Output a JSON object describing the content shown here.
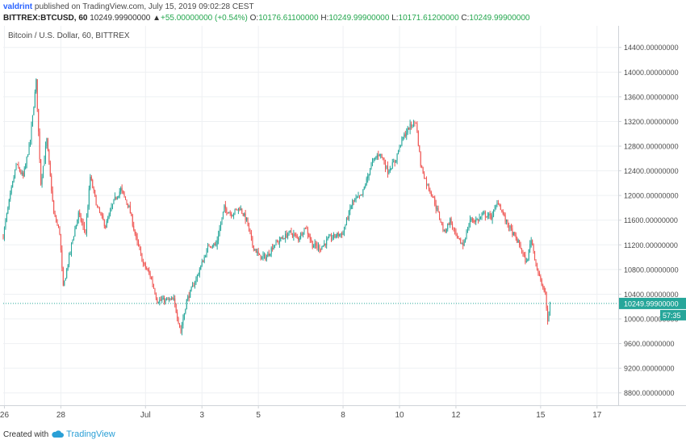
{
  "header": {
    "author": "valdrint",
    "published_text": "published on TradingView.com, July 15, 2019 09:02:28 CEST",
    "symbol": "BITTREX:BTCUSD, 60",
    "last_price": "10249.99900000",
    "change": "+55.00000000 (+0.54%)",
    "o_label": "O:",
    "o_value": "10176.61100000",
    "h_label": "H:",
    "h_value": "10249.99900000",
    "l_label": "L:",
    "l_value": "10171.61200000",
    "c_label": "C:",
    "c_value": "10249.99900000"
  },
  "footer": {
    "created_with": "Created with",
    "brand": "TradingView"
  },
  "colors": {
    "up": "#26a69a",
    "down": "#ef5350",
    "grid": "#eef0f3",
    "price_tag": "#26a69a",
    "header_up": "#25a74f",
    "author": "#2962ff"
  },
  "chart_data": {
    "type": "candlestick",
    "title": "Bitcoin / U.S. Dollar, 60, BITTREX",
    "ylim": [
      8600,
      14750
    ],
    "grid": true,
    "current_price": 10249.999,
    "current_price_label": "10249.99900000",
    "countdown": "57:35",
    "y_ticks": [
      "14400.00000000",
      "14000.00000000",
      "13600.00000000",
      "13200.00000000",
      "12800.00000000",
      "12400.00000000",
      "12000.00000000",
      "11600.00000000",
      "11200.00000000",
      "10800.00000000",
      "10400.00000000",
      "10000.00000000",
      "9600.00000000",
      "9200.00000000",
      "8800.00000000"
    ],
    "y_tick_values": [
      14400,
      14000,
      13600,
      13200,
      12800,
      12400,
      12000,
      11600,
      11200,
      10800,
      10400,
      10000,
      9600,
      9200,
      8800
    ],
    "x_range": [
      "2019-06-25T23:00",
      "2019-07-17T18:00"
    ],
    "x_ticks": [
      {
        "label": "26",
        "t": "2019-06-26T00:00"
      },
      {
        "label": "28",
        "t": "2019-06-28T00:00"
      },
      {
        "label": "Jul",
        "t": "2019-07-01T00:00"
      },
      {
        "label": "3",
        "t": "2019-07-03T00:00"
      },
      {
        "label": "5",
        "t": "2019-07-05T00:00"
      },
      {
        "label": "8",
        "t": "2019-07-08T00:00"
      },
      {
        "label": "10",
        "t": "2019-07-10T00:00"
      },
      {
        "label": "12",
        "t": "2019-07-12T00:00"
      },
      {
        "label": "15",
        "t": "2019-07-15T00:00"
      },
      {
        "label": "17",
        "t": "2019-07-17T00:00"
      }
    ],
    "series_start": "2019-06-25T23:00",
    "series_interval": "1h",
    "close_path": [
      {
        "t": "2019-06-25T23:00",
        "v": 11350
      },
      {
        "t": "2019-06-26T04:00",
        "v": 11900
      },
      {
        "t": "2019-06-26T10:00",
        "v": 12500
      },
      {
        "t": "2019-06-26T16:00",
        "v": 12300
      },
      {
        "t": "2019-06-26T22:00",
        "v": 12900
      },
      {
        "t": "2019-06-27T03:00",
        "v": 13850
      },
      {
        "t": "2019-06-27T07:00",
        "v": 12200
      },
      {
        "t": "2019-06-27T12:00",
        "v": 12900
      },
      {
        "t": "2019-06-27T18:00",
        "v": 11700
      },
      {
        "t": "2019-06-27T23:00",
        "v": 11400
      },
      {
        "t": "2019-06-28T02:00",
        "v": 10500
      },
      {
        "t": "2019-06-28T09:00",
        "v": 11200
      },
      {
        "t": "2019-06-28T15:00",
        "v": 11700
      },
      {
        "t": "2019-06-28T21:00",
        "v": 11400
      },
      {
        "t": "2019-06-29T01:00",
        "v": 12300
      },
      {
        "t": "2019-06-29T07:00",
        "v": 11800
      },
      {
        "t": "2019-06-29T14:00",
        "v": 11500
      },
      {
        "t": "2019-06-29T21:00",
        "v": 11900
      },
      {
        "t": "2019-06-30T03:00",
        "v": 12100
      },
      {
        "t": "2019-06-30T10:00",
        "v": 11800
      },
      {
        "t": "2019-06-30T16:00",
        "v": 11300
      },
      {
        "t": "2019-06-30T22:00",
        "v": 10900
      },
      {
        "t": "2019-07-01T04:00",
        "v": 10700
      },
      {
        "t": "2019-07-01T10:00",
        "v": 10300
      },
      {
        "t": "2019-07-01T17:00",
        "v": 10300
      },
      {
        "t": "2019-07-02T00:00",
        "v": 10300
      },
      {
        "t": "2019-07-02T06:00",
        "v": 9800
      },
      {
        "t": "2019-07-02T11:00",
        "v": 10300
      },
      {
        "t": "2019-07-02T18:00",
        "v": 10600
      },
      {
        "t": "2019-07-03T00:00",
        "v": 10900
      },
      {
        "t": "2019-07-03T06:00",
        "v": 11200
      },
      {
        "t": "2019-07-03T12:00",
        "v": 11200
      },
      {
        "t": "2019-07-03T19:00",
        "v": 11800
      },
      {
        "t": "2019-07-04T01:00",
        "v": 11700
      },
      {
        "t": "2019-07-04T08:00",
        "v": 11800
      },
      {
        "t": "2019-07-04T14:00",
        "v": 11600
      },
      {
        "t": "2019-07-04T19:00",
        "v": 11200
      },
      {
        "t": "2019-07-05T01:00",
        "v": 11000
      },
      {
        "t": "2019-07-05T07:00",
        "v": 11000
      },
      {
        "t": "2019-07-05T13:00",
        "v": 11200
      },
      {
        "t": "2019-07-05T20:00",
        "v": 11300
      },
      {
        "t": "2019-07-06T03:00",
        "v": 11400
      },
      {
        "t": "2019-07-06T10:00",
        "v": 11300
      },
      {
        "t": "2019-07-06T16:00",
        "v": 11500
      },
      {
        "t": "2019-07-06T22:00",
        "v": 11200
      },
      {
        "t": "2019-07-07T05:00",
        "v": 11150
      },
      {
        "t": "2019-07-07T12:00",
        "v": 11300
      },
      {
        "t": "2019-07-07T18:00",
        "v": 11350
      },
      {
        "t": "2019-07-08T00:00",
        "v": 11400
      },
      {
        "t": "2019-07-08T08:00",
        "v": 11900
      },
      {
        "t": "2019-07-08T16:00",
        "v": 12000
      },
      {
        "t": "2019-07-09T00:00",
        "v": 12500
      },
      {
        "t": "2019-07-09T07:00",
        "v": 12700
      },
      {
        "t": "2019-07-09T14:00",
        "v": 12400
      },
      {
        "t": "2019-07-09T20:00",
        "v": 12550
      },
      {
        "t": "2019-07-10T02:00",
        "v": 12900
      },
      {
        "t": "2019-07-10T08:00",
        "v": 13100
      },
      {
        "t": "2019-07-10T14:00",
        "v": 13200
      },
      {
        "t": "2019-07-10T18:00",
        "v": 12500
      },
      {
        "t": "2019-07-10T23:00",
        "v": 12200
      },
      {
        "t": "2019-07-11T04:00",
        "v": 12000
      },
      {
        "t": "2019-07-11T09:00",
        "v": 11700
      },
      {
        "t": "2019-07-11T14:00",
        "v": 11400
      },
      {
        "t": "2019-07-11T19:00",
        "v": 11600
      },
      {
        "t": "2019-07-12T01:00",
        "v": 11300
      },
      {
        "t": "2019-07-12T06:00",
        "v": 11200
      },
      {
        "t": "2019-07-12T12:00",
        "v": 11600
      },
      {
        "t": "2019-07-12T18:00",
        "v": 11600
      },
      {
        "t": "2019-07-13T00:00",
        "v": 11700
      },
      {
        "t": "2019-07-13T06:00",
        "v": 11650
      },
      {
        "t": "2019-07-13T12:00",
        "v": 11900
      },
      {
        "t": "2019-07-13T18:00",
        "v": 11600
      },
      {
        "t": "2019-07-14T00:00",
        "v": 11400
      },
      {
        "t": "2019-07-14T06:00",
        "v": 11200
      },
      {
        "t": "2019-07-14T12:00",
        "v": 10900
      },
      {
        "t": "2019-07-14T16:00",
        "v": 11300
      },
      {
        "t": "2019-07-14T20:00",
        "v": 10900
      },
      {
        "t": "2019-07-15T00:00",
        "v": 10600
      },
      {
        "t": "2019-07-15T04:00",
        "v": 10400
      },
      {
        "t": "2019-07-15T06:00",
        "v": 9950
      },
      {
        "t": "2019-07-15T08:00",
        "v": 10250
      }
    ]
  }
}
